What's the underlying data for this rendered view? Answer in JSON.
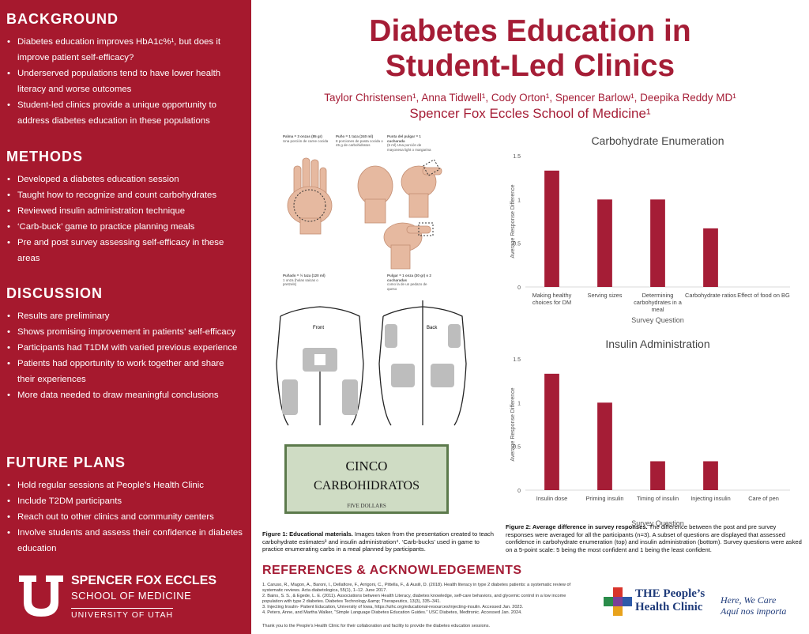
{
  "title": [
    "Diabetes Education in",
    "Student-Led Clinics"
  ],
  "authors": "Taylor Christensen¹, Anna Tidwell¹, Cody Orton¹, Spencer Barlow¹, Deepika Reddy MD¹",
  "affiliation": "Spencer Fox Eccles School of Medicine¹",
  "sections": [
    {
      "heading": "BACKGROUND",
      "items": [
        "Diabetes education improves HbA1c%¹, but does it improve patient self-efficacy?",
        "Underserved populations tend to have lower health literacy and worse outcomes",
        "Student-led clinics provide a unique opportunity to address diabetes education in these populations"
      ]
    },
    {
      "heading": "METHODS",
      "items": [
        "Developed a diabetes education session",
        "Taught how to recognize and count carbohydrates",
        "Reviewed insulin administration technique",
        "‘Carb-buck’ game to practice planning meals",
        "Pre and post survey assessing self-efficacy in these areas"
      ]
    },
    {
      "heading": "DISCUSSION",
      "items": [
        "Results are preliminary",
        "Shows promising improvement in patients’ self-efficacy",
        "Participants had T1DM with varied previous experience",
        "Patients had opportunity to work together and share their experiences",
        "More data needed to draw meaningful conclusions"
      ]
    },
    {
      "heading": "FUTURE PLANS",
      "items": [
        "Hold regular sessions at People’s Health Clinic",
        "Include T2DM participants",
        "Reach out to other clinics and community centers",
        "Involve students and assess their confidence in diabetes education"
      ]
    }
  ],
  "logo": {
    "line1": "SPENCER FOX ECCLES",
    "line2": "SCHOOL OF MEDICINE",
    "line3": "UNIVERSITY OF UTAH"
  },
  "figure1": {
    "hand_captions": [
      {
        "title": "Palma = 3 onzas (85 gr)",
        "text": "Una porción de carne cocida"
      },
      {
        "title": "Puño = 1 taza (240 ml)",
        "text": "8 porciones de pasta cocida o 45 g de carbohidratos"
      },
      {
        "title": "Punta del pulgar = 1 cucharada",
        "text": "(5 ml) Una porción de mayonesa light o margarina"
      },
      {
        "title": "Puñado = ½ taza (120 ml)",
        "text": "1 onza (hulas saicas o pretzels)"
      },
      {
        "title": "Pulgar = 1 onza (30 gr) o 2 cucharadas",
        "text": "como la de un pedazo de queso"
      }
    ],
    "body_labels": [
      "Front",
      "Back"
    ],
    "bill": {
      "line1": "CINCO",
      "line2": "CARBOHIDRATOS",
      "line3": "FIVE DOLLARS"
    },
    "caption_label": "Figure 1: Educational materials.",
    "caption_text": "Images taken from the presentation created to teach carbohydrate estimates³ and insulin administration⁴. ‘Carb-bucks’ used in game to practice enumerating carbs in a meal planned by participants."
  },
  "figure2": {
    "caption_label": "Figure 2: Average difference in survey responses.",
    "caption_text": "The difference between the post and pre survey responses were averaged for all the participants (n=3). A subset of questions are displayed that assessed confidence in carbohydrate enumeration (top) and insulin administration (bottom). Survey questions were asked on a 5-point scale: 5 being the most confident and 1 being the least confident."
  },
  "chart_data": [
    {
      "type": "bar",
      "title": "Carbohydrate Enumeration",
      "categories": [
        "Making healthy choices for DM",
        "Serving sizes",
        "Determining carbohydrates in a meal",
        "Carbohydrate ratios",
        "Effect of food on BG"
      ],
      "values": [
        1.33,
        1,
        1,
        0.67,
        0
      ],
      "color": "#a51d36",
      "ylim": [
        0,
        1.5
      ],
      "yticks": [
        0,
        0.5,
        1,
        1.5
      ],
      "grid": false,
      "x_label": "Survey Question",
      "y_label": "Average Response Difference"
    },
    {
      "type": "bar",
      "title": "Insulin Administration",
      "categories": [
        "Insulin dose",
        "Priming insulin",
        "Timing of insulin",
        "Injecting insulin",
        "Care of pen"
      ],
      "values": [
        1.33,
        1,
        0.33,
        0.33,
        0
      ],
      "color": "#a51d36",
      "ylim": [
        0,
        1.5
      ],
      "yticks": [
        0,
        0.5,
        1,
        1.5
      ],
      "grid": false,
      "x_label": "Survey Question",
      "y_label": "Average Response Difference"
    }
  ],
  "references": {
    "heading": "REFERENCES & ACKNOWLEDGEMENTS",
    "items": [
      "1. Caruso, R., Magon, A., Baroni, I., Dellafiore, F., Arrigoni, C., Pittella, F., & Ausili, D. (2018). Health literacy in type 2 diabetes patients: a systematic review of systematic reviews. Acta diabetologica, 55(1), 1–12. June 2017.",
      "2. Bains, S. S., & Egede, L. E. (2011). Associations between Health Literacy, diabetes knowledge, self-care behaviors, and glycemic control in a low income population with type 2 diabetes. Diabetes Technology &amp; Therapeutics, 13(3), 335–341.",
      "3. Injecting Insulin- Patient Education, University of Iowa, https://uihc.org/educational-resources/injecting-insulin. Accessed Jan. 2023.",
      "4. Peters, Anne, and Martha Walker, “Simple Language Diabetes Education Guides.” USC Diabetes, Medtronic. Accessed Jan. 2024."
    ],
    "thanks": "Thank you to the People’s Health Clinic for their collaboration and facility to provide the diabetes education sessions."
  },
  "clinic_logo": {
    "line1": "THE People’s",
    "line2": "Health Clinic",
    "tagline1": "Here, We Care",
    "tagline2": "Aquí nos importa"
  }
}
